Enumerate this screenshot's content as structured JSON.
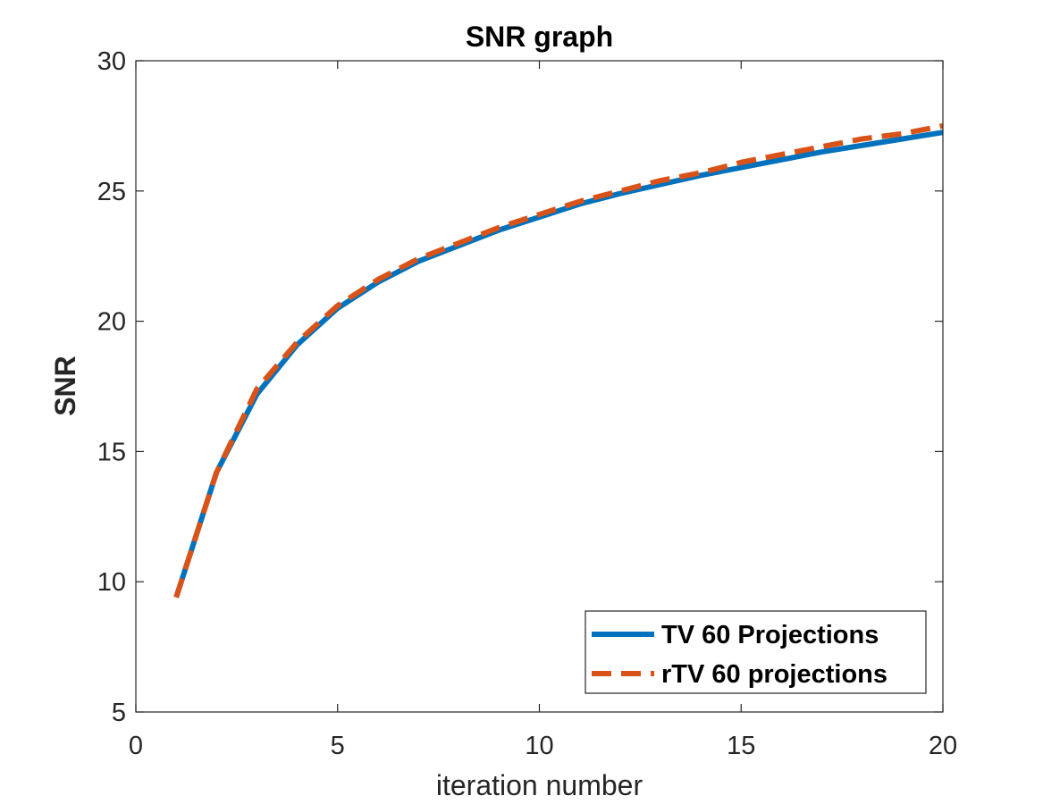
{
  "chart_data": {
    "type": "line",
    "title": "SNR graph",
    "xlabel": "iteration number",
    "ylabel": "SNR",
    "xlim": [
      0,
      20
    ],
    "ylim": [
      5,
      30
    ],
    "xticks": [
      0,
      5,
      10,
      15,
      20
    ],
    "yticks": [
      5,
      10,
      15,
      20,
      25,
      30
    ],
    "xtick_labels": [
      "0",
      "5",
      "10",
      "15",
      "20"
    ],
    "ytick_labels": [
      "5",
      "10",
      "15",
      "20",
      "25",
      "30"
    ],
    "grid": false,
    "legend_position": "bottom-right",
    "x": [
      1,
      2,
      3,
      4,
      5,
      6,
      7,
      8,
      9,
      10,
      11,
      12,
      13,
      14,
      15,
      16,
      17,
      18,
      19,
      20
    ],
    "series": [
      {
        "name": "TV 60 Projections",
        "color": "#0072BD",
        "line_style": "solid",
        "values": [
          9.4,
          14.2,
          17.2,
          19.1,
          20.5,
          21.5,
          22.3,
          22.9,
          23.5,
          24.0,
          24.5,
          24.9,
          25.25,
          25.6,
          25.9,
          26.2,
          26.5,
          26.75,
          27.0,
          27.25
        ]
      },
      {
        "name": "rTV 60 projections",
        "color": "#D95319",
        "line_style": "dashed",
        "values": [
          9.4,
          14.2,
          17.4,
          19.2,
          20.6,
          21.6,
          22.4,
          23.0,
          23.6,
          24.1,
          24.6,
          25.0,
          25.4,
          25.7,
          26.1,
          26.4,
          26.7,
          27.0,
          27.2,
          27.5
        ]
      }
    ]
  }
}
